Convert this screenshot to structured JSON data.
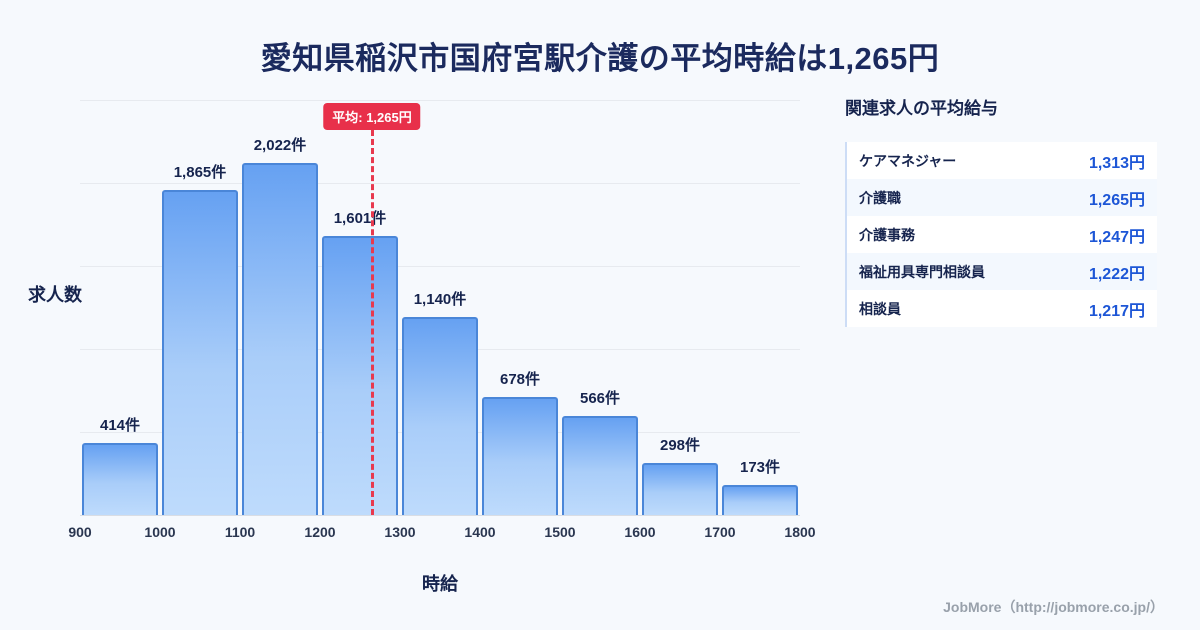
{
  "page": {
    "title": "愛知県稲沢市国府宮駅介護の平均時給は1,265円",
    "footer": "JobMore（http://jobmore.co.jp/）"
  },
  "chart_data": {
    "type": "bar",
    "title": "愛知県稲沢市国府宮駅介護の平均時給は1,265円",
    "xlabel": "時給",
    "ylabel": "求人数",
    "x_ticks": [
      "900",
      "1000",
      "1100",
      "1200",
      "1300",
      "1400",
      "1500",
      "1600",
      "1700",
      "1800"
    ],
    "values": [
      414,
      1865,
      2022,
      1601,
      1140,
      678,
      566,
      298,
      173
    ],
    "bar_labels": [
      "414件",
      "1,865件",
      "2,022件",
      "1,601件",
      "1,140件",
      "678件",
      "566件",
      "298件",
      "173件"
    ],
    "average": 1265,
    "average_label": "平均: 1,265円",
    "xlim": [
      900,
      1800
    ],
    "grid": "horizontal",
    "legend": "none",
    "bar_color_top": "#66a1f2",
    "bar_color_bottom": "#bedbfc",
    "bar_border_color": "#4a86d8",
    "average_line_color": "#e8394e"
  },
  "side_panel": {
    "title": "関連求人の平均給与",
    "rows": [
      {
        "label": "ケアマネジャー",
        "value": "1,313円"
      },
      {
        "label": "介護職",
        "value": "1,265円"
      },
      {
        "label": "介護事務",
        "value": "1,247円"
      },
      {
        "label": "福祉用具専門相談員",
        "value": "1,222円"
      },
      {
        "label": "相談員",
        "value": "1,217円"
      }
    ]
  }
}
